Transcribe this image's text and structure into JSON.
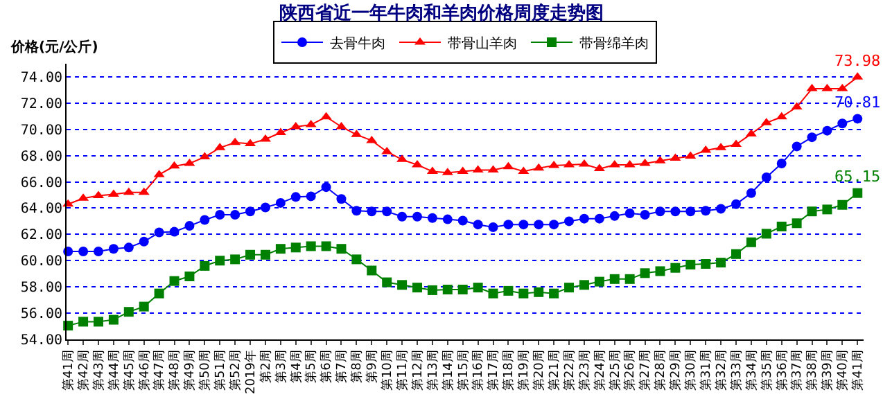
{
  "chart_data": {
    "type": "line",
    "title": "陕西省近一年牛肉和羊肉价格周度走势图",
    "ylabel": "价格(元/公斤)",
    "categories": [
      "第41周",
      "第42周",
      "第43周",
      "第44周",
      "第45周",
      "第46周",
      "第47周",
      "第48周",
      "第49周",
      "第50周",
      "第51周",
      "第52周",
      "2019年",
      "第2周",
      "第3周",
      "第4周",
      "第5周",
      "第6周",
      "第7周",
      "第8周",
      "第9周",
      "第10周",
      "第11周",
      "第12周",
      "第13周",
      "第14周",
      "第15周",
      "第16周",
      "第17周",
      "第18周",
      "第19周",
      "第20周",
      "第21周",
      "第22周",
      "第23周",
      "第24周",
      "第25周",
      "第26周",
      "第27周",
      "第28周",
      "第29周",
      "第30周",
      "第31周",
      "第32周",
      "第33周",
      "第34周",
      "第35周",
      "第36周",
      "第37周",
      "第38周",
      "第39周",
      "第40周",
      "第41周"
    ],
    "series": [
      {
        "name": "去骨牛肉",
        "color": "#0000ff",
        "marker": "circle",
        "values": [
          60.7,
          60.7,
          60.7,
          60.9,
          61.0,
          61.45,
          62.15,
          62.2,
          62.65,
          63.1,
          63.5,
          63.5,
          63.75,
          64.05,
          64.4,
          64.85,
          64.9,
          65.6,
          64.7,
          63.8,
          63.75,
          63.75,
          63.35,
          63.35,
          63.25,
          63.15,
          63.05,
          62.75,
          62.55,
          62.75,
          62.75,
          62.75,
          62.75,
          63.0,
          63.2,
          63.2,
          63.4,
          63.6,
          63.5,
          63.75,
          63.75,
          63.75,
          63.8,
          63.95,
          64.3,
          65.15,
          66.35,
          67.4,
          68.7,
          69.4,
          69.9,
          70.45,
          70.81
        ],
        "value_labels": [
          null,
          null,
          null,
          null,
          null,
          null,
          null,
          null,
          null,
          null,
          null,
          null,
          null,
          null,
          null,
          null,
          null,
          null,
          null,
          null,
          null,
          null,
          null,
          null,
          null,
          null,
          null,
          null,
          null,
          null,
          null,
          null,
          null,
          null,
          null,
          null,
          null,
          null,
          null,
          null,
          null,
          null,
          null,
          null,
          null,
          null,
          null,
          null,
          null,
          null,
          null,
          null,
          "70.81"
        ]
      },
      {
        "name": "带骨山羊肉",
        "color": "#ff0000",
        "marker": "triangle",
        "values": [
          64.3,
          64.75,
          64.95,
          65.05,
          65.2,
          65.2,
          66.55,
          67.2,
          67.4,
          67.9,
          68.6,
          69.0,
          68.9,
          69.25,
          69.75,
          70.2,
          70.35,
          70.95,
          70.2,
          69.6,
          69.15,
          68.3,
          67.7,
          67.3,
          66.8,
          66.7,
          66.8,
          66.9,
          66.9,
          67.15,
          66.8,
          67.05,
          67.25,
          67.3,
          67.35,
          67.0,
          67.3,
          67.3,
          67.4,
          67.6,
          67.8,
          67.95,
          68.4,
          68.6,
          68.85,
          69.65,
          70.5,
          70.95,
          71.7,
          73.1,
          73.1,
          73.1,
          73.98
        ],
        "value_labels": [
          null,
          null,
          null,
          null,
          null,
          null,
          null,
          null,
          null,
          null,
          null,
          null,
          null,
          null,
          null,
          null,
          null,
          null,
          null,
          null,
          null,
          null,
          null,
          null,
          null,
          null,
          null,
          null,
          null,
          null,
          null,
          null,
          null,
          null,
          null,
          null,
          null,
          null,
          null,
          null,
          null,
          null,
          null,
          null,
          null,
          null,
          null,
          null,
          null,
          null,
          null,
          null,
          "73.98"
        ]
      },
      {
        "name": "带骨绵羊肉",
        "color": "#008000",
        "marker": "square",
        "values": [
          55.05,
          55.35,
          55.35,
          55.5,
          56.1,
          56.5,
          57.5,
          58.45,
          58.8,
          59.6,
          60.0,
          60.1,
          60.45,
          60.45,
          60.9,
          61.0,
          61.1,
          61.1,
          60.9,
          60.1,
          59.25,
          58.35,
          58.15,
          57.95,
          57.75,
          57.8,
          57.8,
          57.95,
          57.5,
          57.7,
          57.5,
          57.6,
          57.5,
          57.95,
          58.15,
          58.4,
          58.6,
          58.6,
          59.05,
          59.2,
          59.45,
          59.7,
          59.75,
          59.85,
          60.5,
          61.4,
          62.05,
          62.6,
          62.85,
          63.75,
          63.9,
          64.25,
          65.15
        ],
        "value_labels": [
          null,
          null,
          null,
          null,
          null,
          null,
          null,
          null,
          null,
          null,
          null,
          null,
          null,
          null,
          null,
          null,
          null,
          null,
          null,
          null,
          null,
          null,
          null,
          null,
          null,
          null,
          null,
          null,
          null,
          null,
          null,
          null,
          null,
          null,
          null,
          null,
          null,
          null,
          null,
          null,
          null,
          null,
          null,
          null,
          null,
          null,
          null,
          null,
          null,
          null,
          null,
          null,
          "65.15"
        ]
      }
    ],
    "ylim": [
      54,
      75
    ],
    "yticks": [
      {
        "value": 54,
        "label": "54.00"
      },
      {
        "value": 56,
        "label": "56.00"
      },
      {
        "value": 58,
        "label": "58.00"
      },
      {
        "value": 60,
        "label": "60.00"
      },
      {
        "value": 62,
        "label": "62.00"
      },
      {
        "value": 64,
        "label": "64.00"
      },
      {
        "value": 66,
        "label": "66.00"
      },
      {
        "value": 68,
        "label": "68.00"
      },
      {
        "value": 70,
        "label": "70.00"
      },
      {
        "value": 72,
        "label": "72.00"
      },
      {
        "value": 74,
        "label": "74.00"
      }
    ],
    "grid": "y",
    "legend": "top",
    "line_style": "solid"
  }
}
